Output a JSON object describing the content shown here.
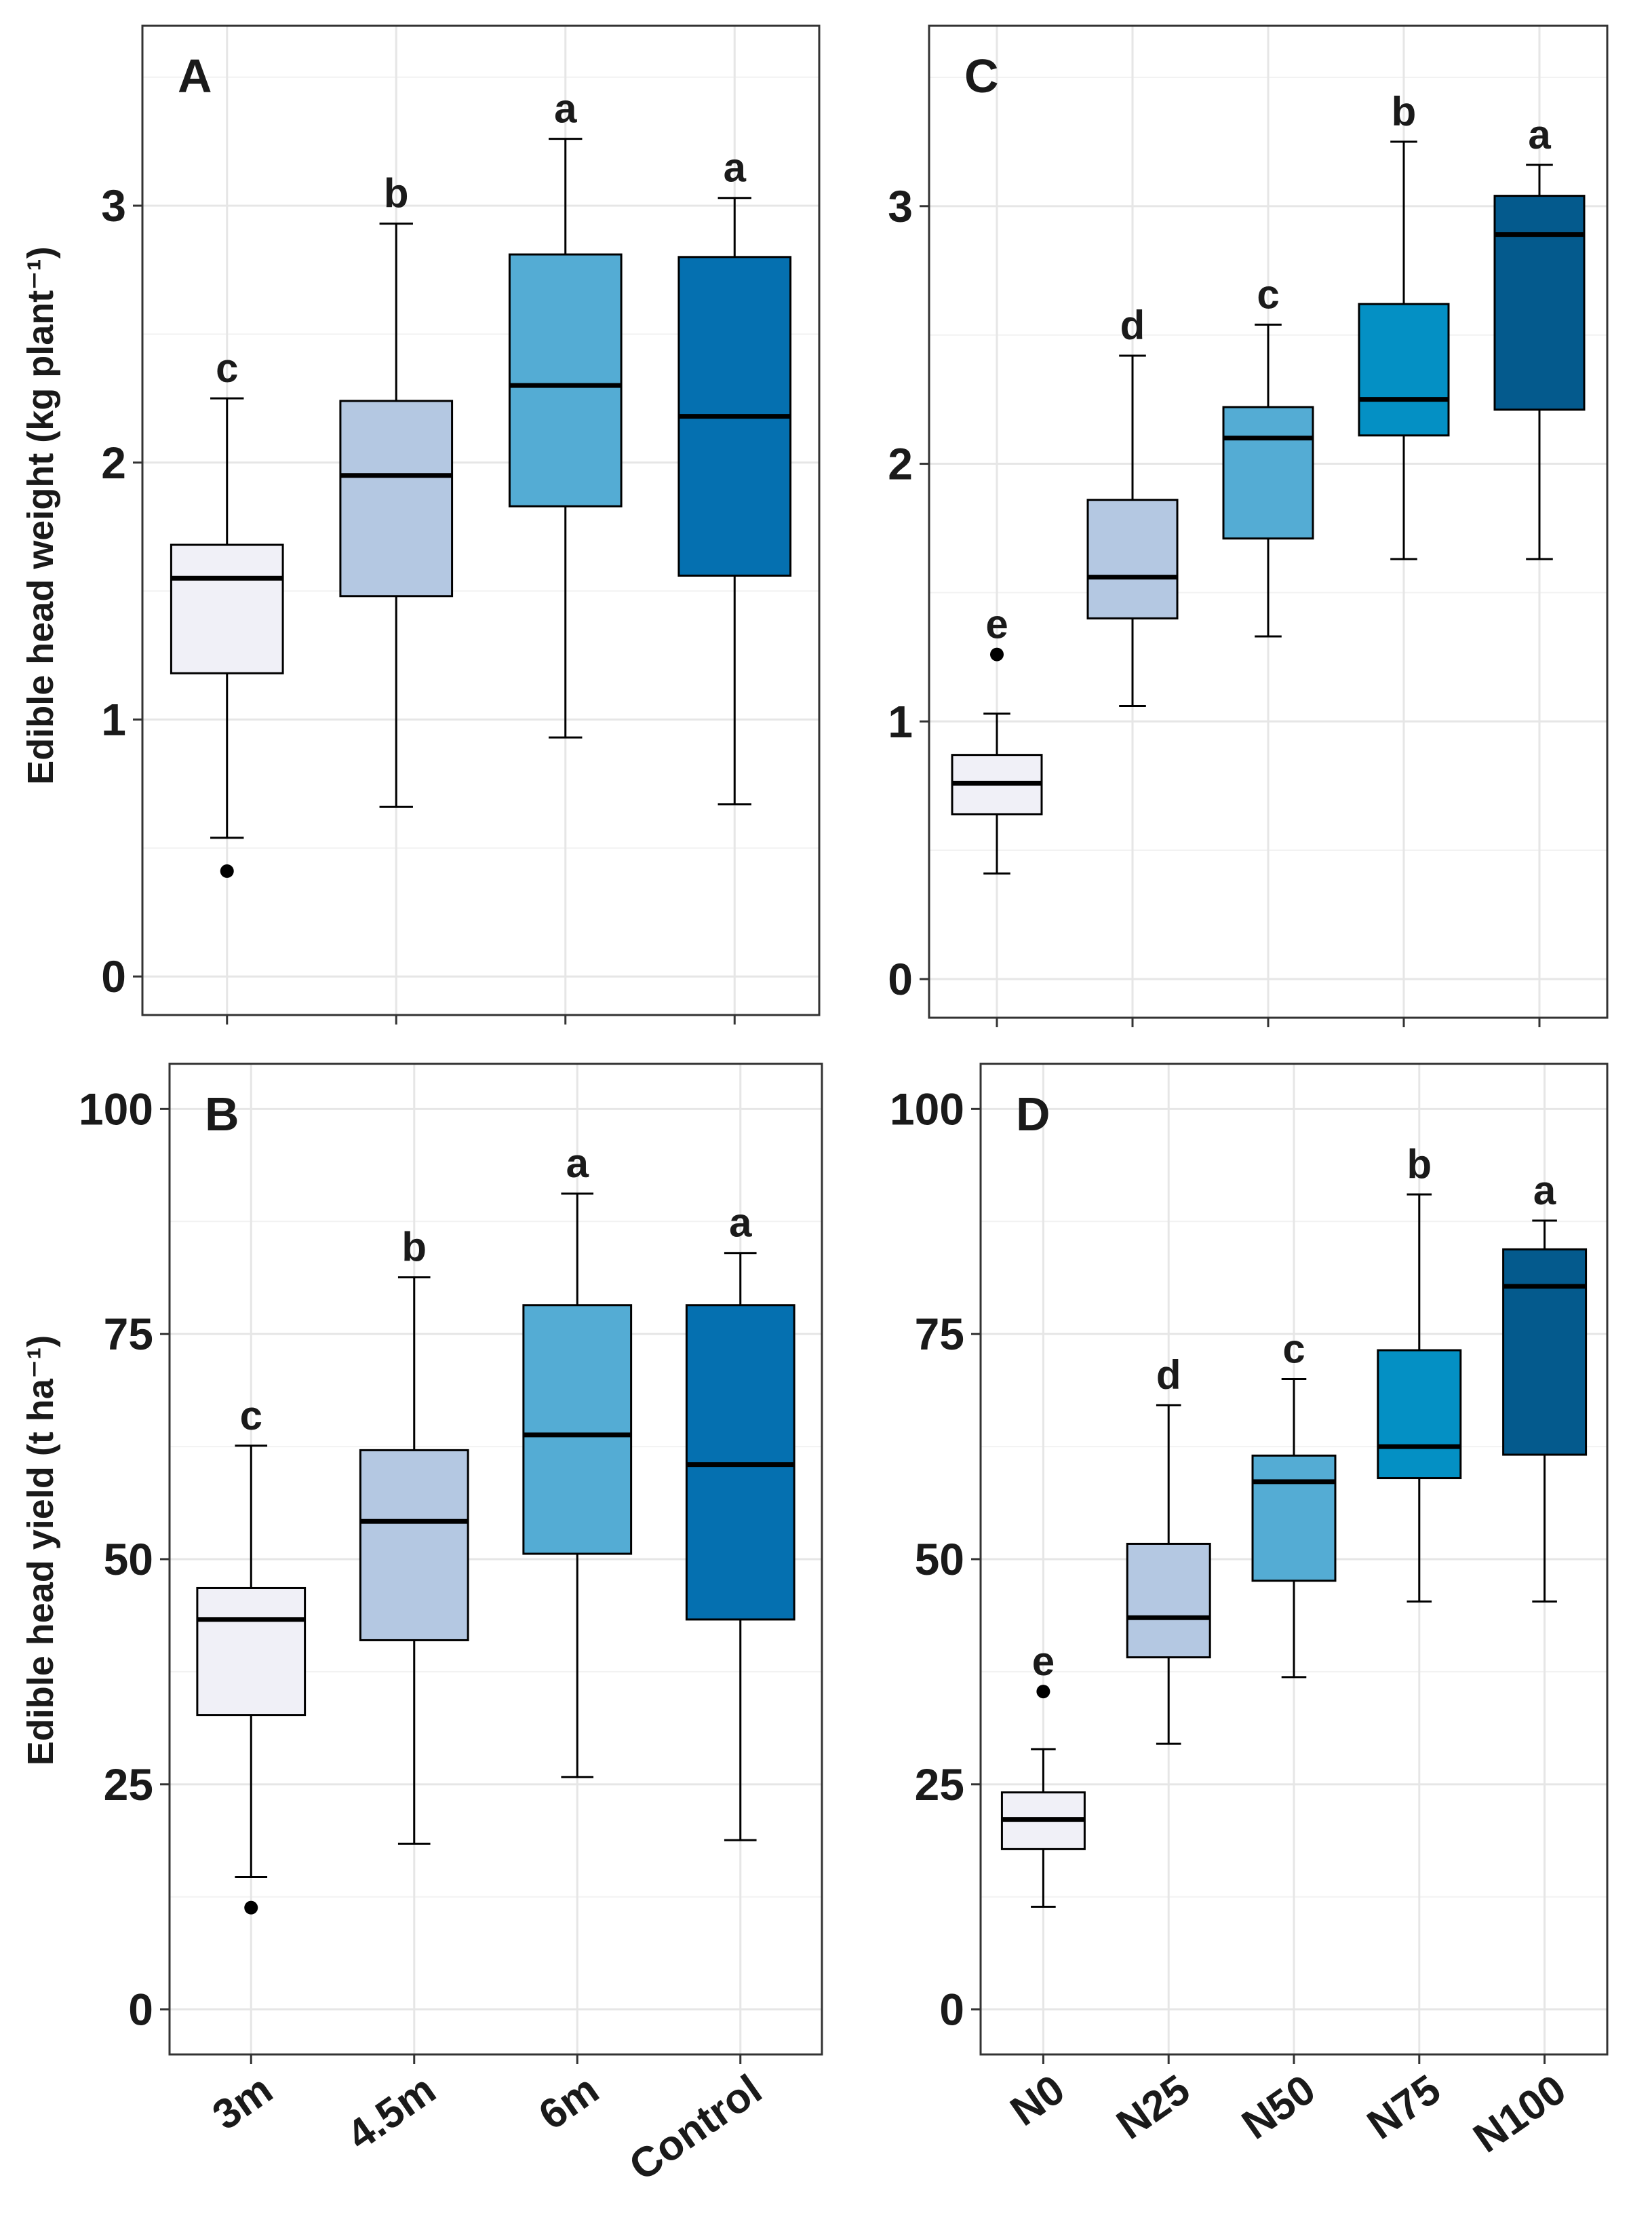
{
  "figure": {
    "ylabel_top": "Edible head weight (kg plant⁻¹)",
    "ylabel_bottom": "Edible head yield (t ha⁻¹)"
  },
  "chart_data": [
    {
      "id": "A",
      "type": "box",
      "panel_label": "A",
      "ylim": [
        -0.15,
        3.7
      ],
      "yticks": [
        0,
        1,
        2,
        3
      ],
      "grid": true,
      "categories": [
        "3m",
        "4.5m",
        "6m",
        "Control"
      ],
      "show_x_tick_labels": false,
      "boxes": [
        {
          "category": "3m",
          "whisker_low": 0.54,
          "q1": 1.18,
          "median": 1.55,
          "q3": 1.68,
          "whisker_high": 2.25,
          "outliers": [
            0.41
          ],
          "letter": "c",
          "color": "#f0f0f7"
        },
        {
          "category": "4.5m",
          "whisker_low": 0.66,
          "q1": 1.48,
          "median": 1.95,
          "q3": 2.24,
          "whisker_high": 2.93,
          "outliers": [],
          "letter": "b",
          "color": "#b4c8e2"
        },
        {
          "category": "6m",
          "whisker_low": 0.93,
          "q1": 1.83,
          "median": 2.3,
          "q3": 2.81,
          "whisker_high": 3.26,
          "outliers": [],
          "letter": "a",
          "color": "#54acd4"
        },
        {
          "category": "Control",
          "whisker_low": 0.67,
          "q1": 1.56,
          "median": 2.18,
          "q3": 2.8,
          "whisker_high": 3.03,
          "outliers": [],
          "letter": "a",
          "color": "#0570b0"
        }
      ]
    },
    {
      "id": "B",
      "type": "box",
      "panel_label": "B",
      "ylim": [
        -5,
        105
      ],
      "yticks": [
        0,
        25,
        50,
        75,
        100
      ],
      "grid": true,
      "categories": [
        "3m",
        "4.5m",
        "6m",
        "Control"
      ],
      "show_x_tick_labels": true,
      "boxes": [
        {
          "category": "3m",
          "whisker_low": 14.7,
          "q1": 32.7,
          "median": 43.3,
          "q3": 46.8,
          "whisker_high": 62.6,
          "outliers": [
            11.3
          ],
          "letter": "c",
          "color": "#f0f0f7"
        },
        {
          "category": "4.5m",
          "whisker_low": 18.4,
          "q1": 41.0,
          "median": 54.2,
          "q3": 62.1,
          "whisker_high": 81.3,
          "outliers": [],
          "letter": "b",
          "color": "#b4c8e2"
        },
        {
          "category": "6m",
          "whisker_low": 25.8,
          "q1": 50.6,
          "median": 63.8,
          "q3": 78.2,
          "whisker_high": 90.6,
          "outliers": [],
          "letter": "a",
          "color": "#54acd4"
        },
        {
          "category": "Control",
          "whisker_low": 18.8,
          "q1": 43.3,
          "median": 60.5,
          "q3": 78.2,
          "whisker_high": 84.0,
          "outliers": [],
          "letter": "a",
          "color": "#0570b0"
        }
      ]
    },
    {
      "id": "C",
      "type": "box",
      "panel_label": "C",
      "ylim": [
        -0.15,
        3.7
      ],
      "yticks": [
        0,
        1,
        2,
        3
      ],
      "grid": true,
      "categories": [
        "N0",
        "N25",
        "N50",
        "N75",
        "N100"
      ],
      "show_x_tick_labels": false,
      "boxes": [
        {
          "category": "N0",
          "whisker_low": 0.41,
          "q1": 0.64,
          "median": 0.76,
          "q3": 0.87,
          "whisker_high": 1.03,
          "outliers": [
            1.26
          ],
          "letter": "e",
          "color": "#f0f0f7"
        },
        {
          "category": "N25",
          "whisker_low": 1.06,
          "q1": 1.4,
          "median": 1.56,
          "q3": 1.86,
          "whisker_high": 2.42,
          "outliers": [],
          "letter": "d",
          "color": "#b4c8e2"
        },
        {
          "category": "N50",
          "whisker_low": 1.33,
          "q1": 1.71,
          "median": 2.1,
          "q3": 2.22,
          "whisker_high": 2.54,
          "outliers": [],
          "letter": "c",
          "color": "#54acd4"
        },
        {
          "category": "N75",
          "whisker_low": 1.63,
          "q1": 2.11,
          "median": 2.25,
          "q3": 2.62,
          "whisker_high": 3.25,
          "outliers": [],
          "letter": "b",
          "color": "#0490c4"
        },
        {
          "category": "N100",
          "whisker_low": 1.63,
          "q1": 2.21,
          "median": 2.89,
          "q3": 3.04,
          "whisker_high": 3.16,
          "outliers": [],
          "letter": "a",
          "color": "#045a8d"
        }
      ]
    },
    {
      "id": "D",
      "type": "box",
      "panel_label": "D",
      "ylim": [
        -5,
        105
      ],
      "yticks": [
        0,
        25,
        50,
        75,
        100
      ],
      "grid": true,
      "categories": [
        "N0",
        "N25",
        "N50",
        "N75",
        "N100"
      ],
      "show_x_tick_labels": true,
      "boxes": [
        {
          "category": "N0",
          "whisker_low": 11.4,
          "q1": 17.8,
          "median": 21.1,
          "q3": 24.1,
          "whisker_high": 28.9,
          "outliers": [
            35.3
          ],
          "letter": "e",
          "color": "#f0f0f7"
        },
        {
          "category": "N25",
          "whisker_low": 29.5,
          "q1": 39.1,
          "median": 43.5,
          "q3": 51.7,
          "whisker_high": 67.1,
          "outliers": [],
          "letter": "d",
          "color": "#b4c8e2"
        },
        {
          "category": "N50",
          "whisker_low": 36.9,
          "q1": 47.6,
          "median": 58.6,
          "q3": 61.5,
          "whisker_high": 70.0,
          "outliers": [],
          "letter": "c",
          "color": "#54acd4"
        },
        {
          "category": "N75",
          "whisker_low": 45.3,
          "q1": 59.0,
          "median": 62.5,
          "q3": 73.2,
          "whisker_high": 90.5,
          "outliers": [],
          "letter": "b",
          "color": "#0490c4"
        },
        {
          "category": "N100",
          "whisker_low": 45.3,
          "q1": 61.6,
          "median": 80.3,
          "q3": 84.4,
          "whisker_high": 87.6,
          "outliers": [],
          "letter": "a",
          "color": "#045a8d"
        }
      ]
    }
  ]
}
